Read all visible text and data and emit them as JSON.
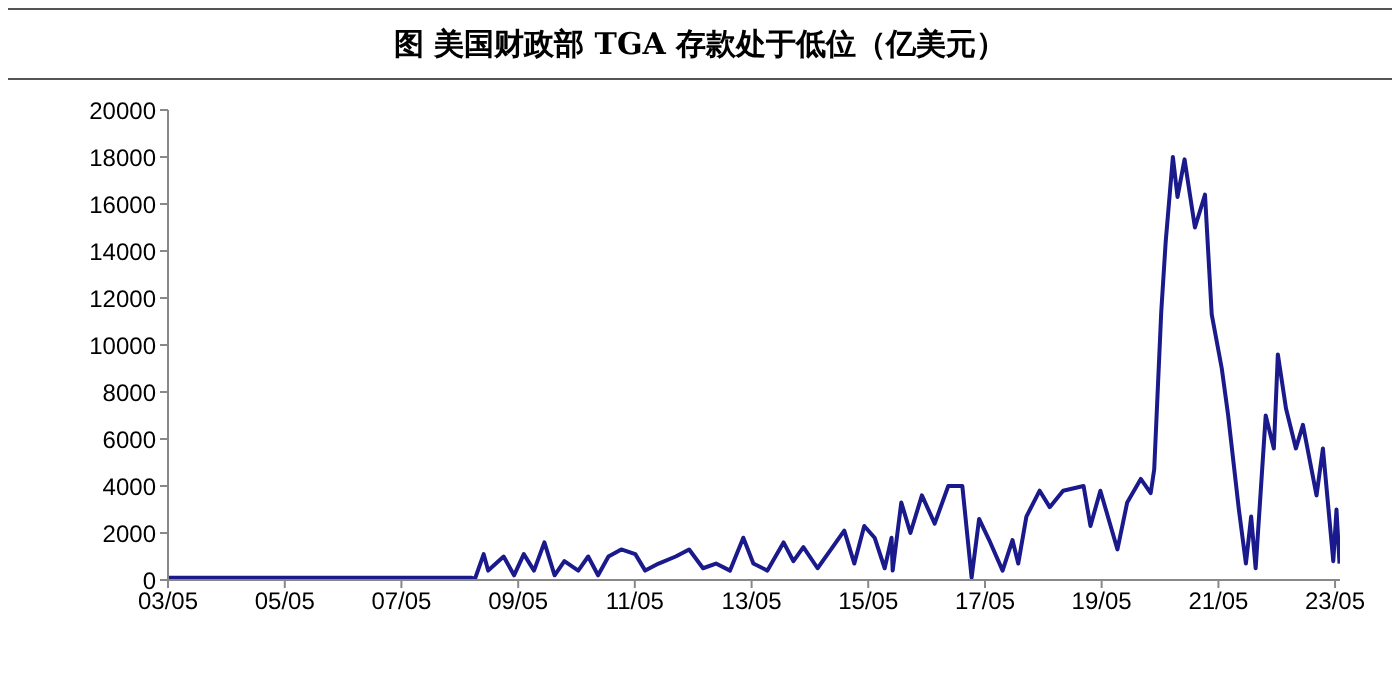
{
  "chart_data": {
    "type": "line",
    "title": "图 美国财政部 TGA 存款处于低位（亿美元）",
    "x": [
      "2003-05-01",
      "2008-07-15",
      "2008-08-01",
      "2008-09-27",
      "2008-10-25",
      "2009-01-30",
      "2009-04-05",
      "2009-06-05",
      "2009-08-08",
      "2009-10-12",
      "2009-12-15",
      "2010-02-14",
      "2010-05-12",
      "2010-07-13",
      "2010-09-13",
      "2010-11-17",
      "2011-02-05",
      "2011-05-04",
      "2011-07-05",
      "2011-09-27",
      "2012-01-12",
      "2012-04-05",
      "2012-07-01",
      "2012-09-20",
      "2012-12-17",
      "2013-03-10",
      "2013-05-12",
      "2013-08-08",
      "2013-11-17",
      "2014-01-18",
      "2014-03-21",
      "2014-06-18",
      "2014-09-10",
      "2014-12-02",
      "2015-02-03",
      "2015-04-06",
      "2015-06-10",
      "2015-08-12",
      "2015-09-24",
      "2015-10-01",
      "2015-11-24",
      "2016-01-20",
      "2016-04-01",
      "2016-06-20",
      "2016-09-13",
      "2016-12-10",
      "2017-02-06",
      "2017-03-25",
      "2017-05-27",
      "2017-08-19",
      "2017-10-20",
      "2017-11-25",
      "2018-01-15",
      "2018-04-08",
      "2018-06-10",
      "2018-09-02",
      "2019-01-08",
      "2019-02-20",
      "2019-04-23",
      "2019-08-08",
      "2019-10-08",
      "2020-01-01",
      "2020-03-03",
      "2020-03-25",
      "2020-05-08",
      "2020-06-05",
      "2020-07-20",
      "2020-08-18",
      "2020-10-01",
      "2020-12-05",
      "2021-02-06",
      "2021-03-20",
      "2021-05-22",
      "2021-07-01",
      "2021-09-06",
      "2021-10-20",
      "2021-11-22",
      "2021-12-20",
      "2022-02-21",
      "2022-04-13",
      "2022-05-08",
      "2022-06-28",
      "2022-08-29",
      "2022-10-12",
      "2023-01-05",
      "2023-02-14",
      "2023-04-20",
      "2023-05-10",
      "2023-05-29"
    ],
    "series": [
      {
        "color": "#1a1a8c",
        "values": [
          100,
          100,
          0,
          1100,
          400,
          1000,
          200,
          1100,
          400,
          1600,
          200,
          800,
          400,
          1000,
          200,
          1000,
          1300,
          1100,
          400,
          700,
          1000,
          1300,
          500,
          700,
          400,
          1800,
          700,
          400,
          1600,
          800,
          1400,
          500,
          1300,
          2100,
          700,
          2300,
          1800,
          500,
          1800,
          400,
          3300,
          2000,
          3600,
          2400,
          4000,
          4000,
          100,
          2600,
          1700,
          400,
          1700,
          700,
          2700,
          3800,
          3100,
          3800,
          4000,
          2300,
          3800,
          1300,
          3300,
          4300,
          3700,
          4700,
          11400,
          14400,
          18000,
          16300,
          17900,
          15000,
          16400,
          11300,
          9000,
          7000,
          3000,
          700,
          2700,
          500,
          7000,
          5600,
          9600,
          7300,
          5600,
          6600,
          3600,
          5600,
          800,
          3000,
          700
        ]
      }
    ],
    "xlim": [
      "2003-05-01",
      "2023-06-01"
    ],
    "xticks": [
      {
        "value": "2003-05-01",
        "label": "03/05"
      },
      {
        "value": "2005-05-01",
        "label": "05/05"
      },
      {
        "value": "2007-05-01",
        "label": "07/05"
      },
      {
        "value": "2009-05-01",
        "label": "09/05"
      },
      {
        "value": "2011-05-01",
        "label": "11/05"
      },
      {
        "value": "2013-05-01",
        "label": "13/05"
      },
      {
        "value": "2015-05-01",
        "label": "15/05"
      },
      {
        "value": "2017-05-01",
        "label": "17/05"
      },
      {
        "value": "2019-05-01",
        "label": "19/05"
      },
      {
        "value": "2021-05-01",
        "label": "21/05"
      },
      {
        "value": "2023-05-01",
        "label": "23/05"
      }
    ],
    "ylim": [
      0,
      20000
    ],
    "yticks": [
      0,
      2000,
      4000,
      6000,
      8000,
      10000,
      12000,
      14000,
      16000,
      18000,
      20000
    ],
    "grid": false,
    "legend": false,
    "marker": "none",
    "line_style": "solid"
  }
}
